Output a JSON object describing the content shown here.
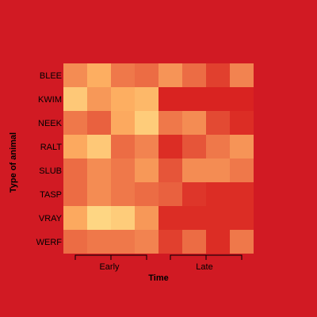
{
  "chart_data": {
    "type": "heatmap",
    "title": "",
    "xlabel": "Time",
    "ylabel": "Type of animal",
    "rows": [
      "BLEE",
      "KWIM",
      "NEEK",
      "RALT",
      "SLUB",
      "TASP",
      "VRAY",
      "WERF"
    ],
    "column_groups": [
      {
        "label": "Early",
        "columns": 4
      },
      {
        "label": "Late",
        "columns": 4
      }
    ],
    "values": [
      [
        0.55,
        0.75,
        0.45,
        0.4,
        0.6,
        0.4,
        0.2,
        0.5
      ],
      [
        0.88,
        0.62,
        0.75,
        0.8,
        0.05,
        0.05,
        0.05,
        0.05
      ],
      [
        0.45,
        0.35,
        0.72,
        0.9,
        0.45,
        0.55,
        0.25,
        0.1
      ],
      [
        0.72,
        0.88,
        0.4,
        0.5,
        0.1,
        0.3,
        0.45,
        0.6
      ],
      [
        0.4,
        0.55,
        0.45,
        0.62,
        0.3,
        0.55,
        0.55,
        0.45
      ],
      [
        0.4,
        0.55,
        0.45,
        0.4,
        0.35,
        0.15,
        0.1,
        0.1
      ],
      [
        0.72,
        0.95,
        0.9,
        0.62,
        0.1,
        0.1,
        0.1,
        0.1
      ],
      [
        0.4,
        0.45,
        0.45,
        0.5,
        0.2,
        0.4,
        0.1,
        0.45
      ]
    ],
    "color_scale": [
      "#d7191c",
      "#e34a33",
      "#f28350",
      "#fdae61",
      "#fee08b"
    ],
    "grid": false
  }
}
